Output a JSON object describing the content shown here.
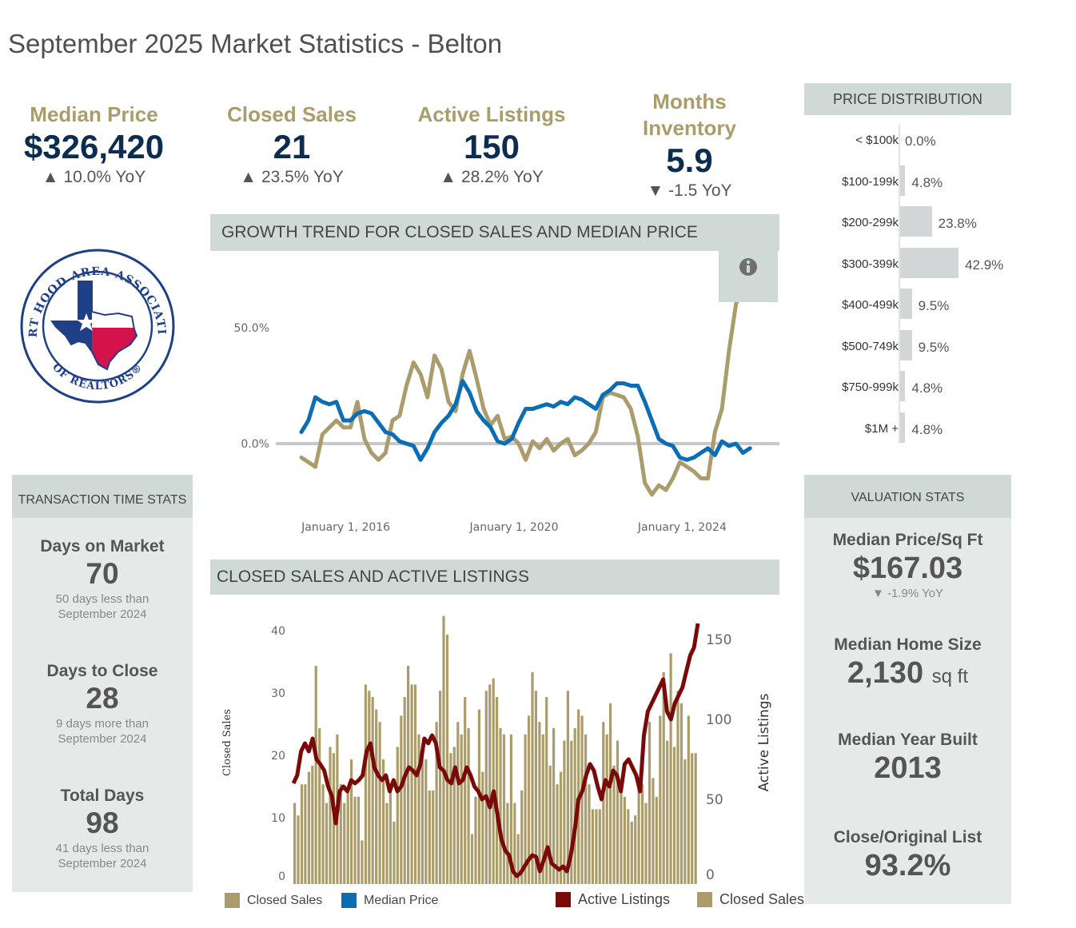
{
  "page_title": "September 2025 Market Statistics - Belton",
  "kpis": [
    {
      "label": "Median Price",
      "value": "$326,420",
      "yoy": "10.0% YoY",
      "arrow": "▲"
    },
    {
      "label": "Closed Sales",
      "value": "21",
      "yoy": "23.5% YoY",
      "arrow": "▲"
    },
    {
      "label": "Active Listings",
      "value": "150",
      "yoy": "28.2% YoY",
      "arrow": "▲"
    },
    {
      "label_line1": "Months",
      "label_line2": "Inventory",
      "value": "5.9",
      "yoy": "-1.5 YoY",
      "arrow": "▼"
    }
  ],
  "logo": {
    "text_top": "FORT HOOD AREA ASSOCIATION",
    "text_bottom": "OF REALTORS®"
  },
  "transaction_time": {
    "title": "TRANSACTION TIME STATS",
    "items": [
      {
        "label": "Days on Market",
        "value": "70",
        "sub1": "50 days less than",
        "sub2": "September 2024"
      },
      {
        "label": "Days to Close",
        "value": "28",
        "sub1": "9 days more than",
        "sub2": "September 2024"
      },
      {
        "label": "Total Days",
        "value": "98",
        "sub1": "41 days less than",
        "sub2": "September 2024"
      }
    ]
  },
  "price_distribution": {
    "title": "PRICE DISTRIBUTION",
    "rows": [
      {
        "range": "< $100k",
        "pct": 0.0,
        "label": "0.0%"
      },
      {
        "range": "$100-199k",
        "pct": 4.8,
        "label": "4.8%"
      },
      {
        "range": "$200-299k",
        "pct": 23.8,
        "label": "23.8%"
      },
      {
        "range": "$300-399k",
        "pct": 42.9,
        "label": "42.9%"
      },
      {
        "range": "$400-499k",
        "pct": 9.5,
        "label": "9.5%"
      },
      {
        "range": "$500-749k",
        "pct": 9.5,
        "label": "9.5%"
      },
      {
        "range": "$750-999k",
        "pct": 4.8,
        "label": "4.8%"
      },
      {
        "range": "$1M +",
        "pct": 4.8,
        "label": "4.8%"
      }
    ]
  },
  "valuation": {
    "title": "VALUATION STATS",
    "price_sqft": {
      "label": "Median Price/Sq Ft",
      "value": "$167.03",
      "yoy": "-1.9% YoY",
      "arrow": "▼"
    },
    "home_size": {
      "label": "Median Home Size",
      "value": "2,130",
      "unit": "sq ft"
    },
    "year_built": {
      "label": "Median Year Built",
      "value": "2013"
    },
    "close_orig": {
      "label": "Close/Original List",
      "value": "93.2%"
    }
  },
  "icons": {
    "info": "info-icon"
  },
  "colors": {
    "gold": "#ab9c6c",
    "navy": "#0c2d4f",
    "blue": "#0a6db5",
    "maroon": "#7a0a0a",
    "panel": "#e5eae9",
    "header": "#cfdad7"
  },
  "chart_data": [
    {
      "type": "line",
      "title": "GROWTH TREND FOR CLOSED SALES AND MEDIAN PRICE",
      "ylabel": "",
      "xlabel": "",
      "x_start": 2015.0,
      "x_step_years": 0.1667,
      "xticks": [
        {
          "value": 2016,
          "label": "January 1, 2016"
        },
        {
          "value": 2020,
          "label": "January 1, 2020"
        },
        {
          "value": 2024,
          "label": "January 1, 2024"
        }
      ],
      "yticks": [
        {
          "value": 0,
          "label": "0.0%"
        },
        {
          "value": 50,
          "label": "50.0%"
        }
      ],
      "ylim": [
        -25,
        62
      ],
      "series": [
        {
          "name": "Closed Sales",
          "color": "#ab9c6c",
          "values": [
            -6,
            -8,
            -10,
            4,
            7,
            10,
            7,
            7,
            18,
            2,
            -4,
            -7,
            -4,
            10,
            12,
            25,
            35,
            30,
            20,
            38,
            32,
            18,
            14,
            30,
            40,
            28,
            15,
            8,
            12,
            2,
            3,
            0,
            -7,
            1,
            -2,
            2,
            -3,
            0,
            2,
            -5,
            -3,
            0,
            5,
            20,
            22,
            21,
            20,
            15,
            3,
            -17,
            -22,
            -18,
            -20,
            -15,
            -8,
            -10,
            -12,
            -15,
            -15,
            5,
            15,
            40,
            60,
            75
          ]
        },
        {
          "name": "Median Price",
          "color": "#0a6db5",
          "values": [
            5,
            10,
            20,
            18,
            17,
            18,
            10,
            10,
            13,
            14,
            13,
            9,
            5,
            4,
            1,
            0,
            -1,
            -7,
            -2,
            5,
            9,
            12,
            17,
            27,
            22,
            14,
            10,
            7,
            1,
            0,
            2,
            9,
            15,
            15,
            16,
            17,
            16,
            18,
            17,
            20,
            19,
            17,
            15,
            21,
            23,
            26,
            26,
            25,
            25,
            18,
            10,
            2,
            0,
            -1,
            -6,
            -7,
            -6,
            -4,
            -2,
            -5,
            1,
            -1,
            0,
            -4,
            -2
          ]
        }
      ],
      "legend": [
        {
          "label": "Closed Sales",
          "color": "#ab9c6c"
        },
        {
          "label": "Median Price",
          "color": "#0a6db5"
        }
      ],
      "legend_position": "bottom-left"
    },
    {
      "type": "bar",
      "title": "CLOSED SALES AND ACTIVE LISTINGS",
      "ylabel": "Closed Sales",
      "y2label": "Active Listings",
      "yticks": [
        0,
        10,
        20,
        30,
        40
      ],
      "y2ticks": [
        0,
        50,
        100,
        150
      ],
      "ylim": [
        0,
        42
      ],
      "y2lim": [
        0,
        160
      ],
      "bars": {
        "name": "Closed Sales",
        "color": "#ab9c6c",
        "values": [
          13,
          11,
          16,
          16,
          18,
          19,
          35,
          25,
          16,
          13,
          22,
          21,
          24,
          16,
          13,
          15,
          20,
          14,
          14,
          7,
          32,
          31,
          30,
          28,
          26,
          20,
          13,
          16,
          10,
          22,
          27,
          30,
          35,
          32,
          32,
          24,
          22,
          20,
          15,
          15,
          26,
          31,
          43,
          40,
          21,
          22,
          26,
          24,
          30,
          25,
          8,
          14,
          28,
          18,
          31,
          32,
          33,
          30,
          25,
          24,
          13,
          24,
          13,
          8,
          15,
          24,
          27,
          34,
          31,
          26,
          24,
          30,
          19,
          25,
          16,
          18,
          23,
          31,
          23,
          25,
          28,
          27,
          24,
          16,
          12,
          12,
          12,
          26,
          24,
          29,
          19,
          23,
          15,
          14,
          12,
          10,
          11,
          17,
          16,
          13,
          26,
          17,
          14,
          27,
          34,
          23,
          37,
          22,
          31,
          29,
          20,
          27,
          21,
          21
        ]
      },
      "line": {
        "name": "Active Listings",
        "color": "#7a0a0a",
        "values": [
          60,
          65,
          80,
          85,
          80,
          88,
          75,
          72,
          68,
          58,
          52,
          35,
          55,
          58,
          55,
          62,
          60,
          62,
          65,
          80,
          85,
          70,
          65,
          62,
          65,
          55,
          62,
          55,
          58,
          65,
          70,
          68,
          65,
          72,
          88,
          85,
          90,
          85,
          70,
          68,
          62,
          60,
          70,
          60,
          62,
          70,
          65,
          58,
          55,
          50,
          52,
          45,
          55,
          40,
          25,
          18,
          15,
          5,
          2,
          4,
          8,
          12,
          15,
          14,
          5,
          12,
          20,
          10,
          8,
          6,
          8,
          5,
          15,
          30,
          50,
          55,
          65,
          72,
          68,
          58,
          50,
          62,
          58,
          68,
          65,
          55,
          72,
          75,
          70,
          65,
          55,
          90,
          105,
          110,
          115,
          120,
          125,
          105,
          100,
          110,
          115,
          120,
          130,
          140,
          145,
          160
        ]
      },
      "legend": [
        {
          "label": "Active Listings",
          "color": "#7a0a0a"
        },
        {
          "label": "Closed Sales",
          "color": "#ab9c6c"
        }
      ],
      "legend_position": "bottom-right"
    }
  ]
}
